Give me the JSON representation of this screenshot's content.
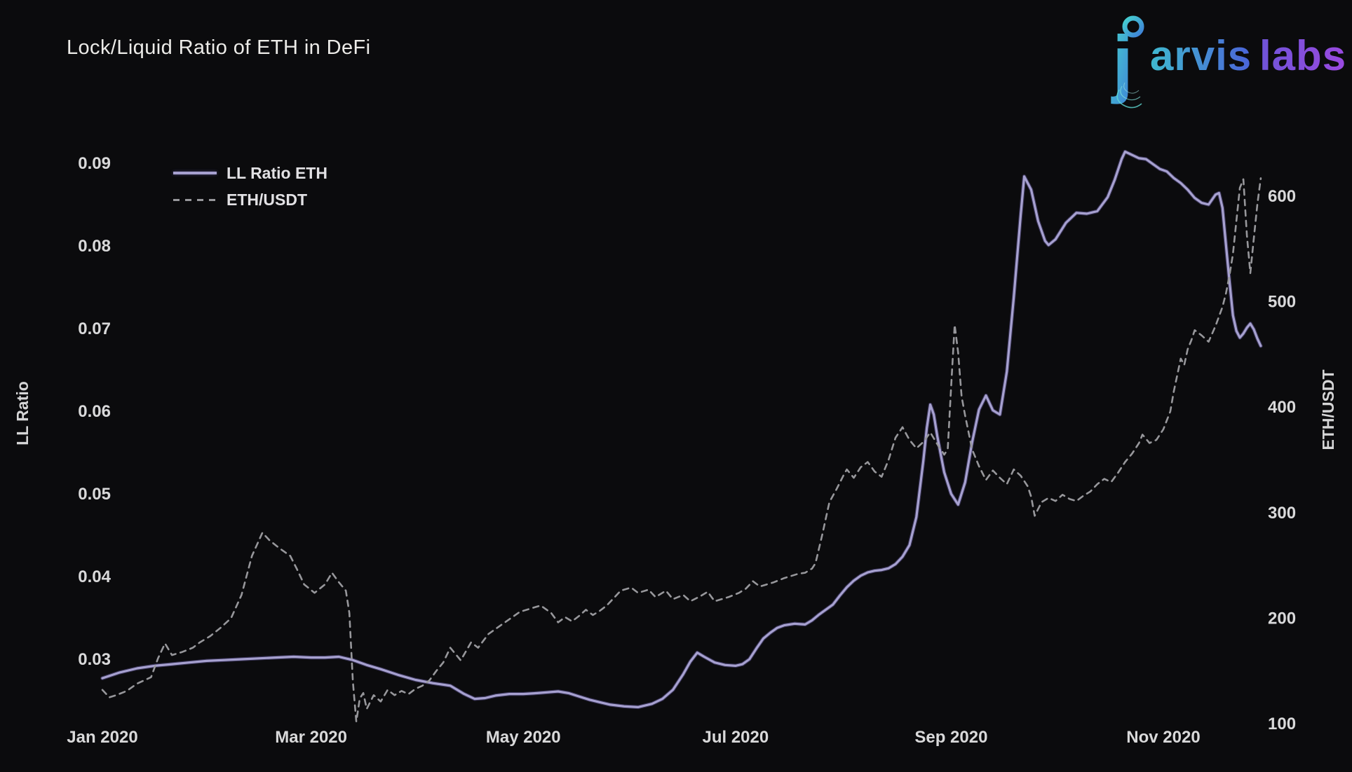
{
  "page": {
    "title": "Lock/Liquid Ratio of ETH in DeFi"
  },
  "brand": {
    "name": "jarvis labs",
    "initial": "j",
    "rest1": "arvis",
    "rest2": "labs",
    "teal": "#3fc3c9",
    "blue": "#4b63d8",
    "purple": "#9a49e0"
  },
  "chart_data": {
    "type": "line",
    "title": "Lock/Liquid Ratio of ETH in DeFi",
    "grid": false,
    "legend_position": "upper-left",
    "x_axis": {
      "tick_labels": [
        "Jan 2020",
        "Mar 2020",
        "May 2020",
        "Jul 2020",
        "Sep 2020",
        "Nov 2020"
      ],
      "tick_days": [
        0,
        60,
        121,
        182,
        244,
        305
      ],
      "range_days": [
        0,
        334
      ]
    },
    "left_axis": {
      "label": "LL Ratio",
      "tick_values": [
        0.03,
        0.04,
        0.05,
        0.06,
        0.07,
        0.08,
        0.09
      ],
      "tick_labels": [
        "0.03",
        "0.04",
        "0.05",
        "0.06",
        "0.07",
        "0.08",
        "0.09"
      ],
      "range": [
        0.022,
        0.094
      ]
    },
    "right_axis": {
      "label": "ETH/USDT",
      "tick_values": [
        100,
        200,
        300,
        400,
        500,
        600
      ],
      "tick_labels": [
        "100",
        "200",
        "300",
        "400",
        "500",
        "600"
      ],
      "range": [
        85,
        640
      ]
    },
    "series": [
      {
        "name": "LL Ratio ETH",
        "axis": "left",
        "style": "solid",
        "color": "#a7a1d0",
        "points": [
          [
            0,
            0.0277
          ],
          [
            5,
            0.0284
          ],
          [
            10,
            0.0289
          ],
          [
            15,
            0.0292
          ],
          [
            20,
            0.0294
          ],
          [
            25,
            0.0296
          ],
          [
            30,
            0.0298
          ],
          [
            35,
            0.0299
          ],
          [
            40,
            0.03
          ],
          [
            45,
            0.0301
          ],
          [
            50,
            0.0302
          ],
          [
            55,
            0.0303
          ],
          [
            60,
            0.0302
          ],
          [
            64,
            0.0302
          ],
          [
            68,
            0.0303
          ],
          [
            72,
            0.0299
          ],
          [
            76,
            0.0293
          ],
          [
            80,
            0.0288
          ],
          [
            85,
            0.0281
          ],
          [
            90,
            0.0275
          ],
          [
            95,
            0.0271
          ],
          [
            100,
            0.0268
          ],
          [
            104,
            0.0258
          ],
          [
            107,
            0.0252
          ],
          [
            110,
            0.0253
          ],
          [
            113,
            0.0256
          ],
          [
            117,
            0.0258
          ],
          [
            121,
            0.0258
          ],
          [
            125,
            0.0259
          ],
          [
            128,
            0.026
          ],
          [
            131,
            0.0261
          ],
          [
            134,
            0.0259
          ],
          [
            137,
            0.0255
          ],
          [
            140,
            0.0251
          ],
          [
            143,
            0.0248
          ],
          [
            146,
            0.0245
          ],
          [
            150,
            0.0243
          ],
          [
            154,
            0.0242
          ],
          [
            158,
            0.0246
          ],
          [
            161,
            0.0252
          ],
          [
            164,
            0.0263
          ],
          [
            167,
            0.0282
          ],
          [
            169,
            0.0297
          ],
          [
            171,
            0.0308
          ],
          [
            173,
            0.0303
          ],
          [
            176,
            0.0296
          ],
          [
            179,
            0.0293
          ],
          [
            182,
            0.0292
          ],
          [
            184,
            0.0294
          ],
          [
            186,
            0.03
          ],
          [
            188,
            0.0313
          ],
          [
            190,
            0.0325
          ],
          [
            192,
            0.0332
          ],
          [
            194,
            0.0338
          ],
          [
            196,
            0.0341
          ],
          [
            199,
            0.0343
          ],
          [
            202,
            0.0342
          ],
          [
            204,
            0.0347
          ],
          [
            206,
            0.0354
          ],
          [
            208,
            0.036
          ],
          [
            210,
            0.0366
          ],
          [
            212,
            0.0377
          ],
          [
            214,
            0.0387
          ],
          [
            216,
            0.0395
          ],
          [
            218,
            0.0401
          ],
          [
            220,
            0.0405
          ],
          [
            222,
            0.0407
          ],
          [
            224,
            0.0408
          ],
          [
            226,
            0.041
          ],
          [
            228,
            0.0415
          ],
          [
            230,
            0.0424
          ],
          [
            232,
            0.0438
          ],
          [
            234,
            0.0472
          ],
          [
            236,
            0.054
          ],
          [
            237,
            0.058
          ],
          [
            238,
            0.0608
          ],
          [
            239,
            0.0596
          ],
          [
            240,
            0.057
          ],
          [
            241,
            0.0548
          ],
          [
            242,
            0.0526
          ],
          [
            244,
            0.05
          ],
          [
            246,
            0.0487
          ],
          [
            248,
            0.0514
          ],
          [
            250,
            0.0562
          ],
          [
            252,
            0.0602
          ],
          [
            254,
            0.0619
          ],
          [
            256,
            0.0601
          ],
          [
            258,
            0.0596
          ],
          [
            260,
            0.0648
          ],
          [
            262,
            0.0738
          ],
          [
            264,
            0.0838
          ],
          [
            265,
            0.0884
          ],
          [
            267,
            0.0868
          ],
          [
            269,
            0.083
          ],
          [
            271,
            0.0806
          ],
          [
            272,
            0.0801
          ],
          [
            274,
            0.0808
          ],
          [
            277,
            0.0828
          ],
          [
            280,
            0.084
          ],
          [
            283,
            0.0839
          ],
          [
            286,
            0.0842
          ],
          [
            289,
            0.0859
          ],
          [
            291,
            0.088
          ],
          [
            293,
            0.0905
          ],
          [
            294,
            0.0914
          ],
          [
            296,
            0.091
          ],
          [
            298,
            0.0906
          ],
          [
            300,
            0.0905
          ],
          [
            302,
            0.0899
          ],
          [
            304,
            0.0893
          ],
          [
            306,
            0.089
          ],
          [
            308,
            0.0882
          ],
          [
            310,
            0.0876
          ],
          [
            312,
            0.0868
          ],
          [
            314,
            0.0858
          ],
          [
            316,
            0.0852
          ],
          [
            318,
            0.085
          ],
          [
            320,
            0.0862
          ],
          [
            321,
            0.0864
          ],
          [
            322,
            0.0846
          ],
          [
            323,
            0.0801
          ],
          [
            324,
            0.0757
          ],
          [
            325,
            0.0716
          ],
          [
            326,
            0.0697
          ],
          [
            327,
            0.0689
          ],
          [
            328,
            0.0694
          ],
          [
            329,
            0.0701
          ],
          [
            330,
            0.0706
          ],
          [
            331,
            0.0699
          ],
          [
            332,
            0.0688
          ],
          [
            333,
            0.0679
          ]
        ]
      },
      {
        "name": "ETH/USDT",
        "axis": "right",
        "style": "dashed",
        "color": "#97979b",
        "points": [
          [
            0,
            132
          ],
          [
            2,
            125
          ],
          [
            4,
            127
          ],
          [
            7,
            131
          ],
          [
            10,
            138
          ],
          [
            14,
            144
          ],
          [
            16,
            162
          ],
          [
            18,
            176
          ],
          [
            20,
            165
          ],
          [
            23,
            168
          ],
          [
            26,
            172
          ],
          [
            28,
            177
          ],
          [
            31,
            183
          ],
          [
            34,
            191
          ],
          [
            37,
            200
          ],
          [
            40,
            222
          ],
          [
            43,
            259
          ],
          [
            46,
            281
          ],
          [
            48,
            274
          ],
          [
            51,
            266
          ],
          [
            54,
            259
          ],
          [
            56,
            246
          ],
          [
            58,
            232
          ],
          [
            61,
            224
          ],
          [
            64,
            232
          ],
          [
            66,
            243
          ],
          [
            68,
            234
          ],
          [
            70,
            226
          ],
          [
            71,
            205
          ],
          [
            72,
            140
          ],
          [
            73,
            102
          ],
          [
            74,
            124
          ],
          [
            75,
            129
          ],
          [
            76,
            114
          ],
          [
            78,
            127
          ],
          [
            80,
            121
          ],
          [
            82,
            132
          ],
          [
            84,
            127
          ],
          [
            86,
            131
          ],
          [
            88,
            128
          ],
          [
            90,
            133
          ],
          [
            92,
            136
          ],
          [
            94,
            141
          ],
          [
            96,
            150
          ],
          [
            98,
            158
          ],
          [
            100,
            172
          ],
          [
            103,
            160
          ],
          [
            106,
            177
          ],
          [
            108,
            172
          ],
          [
            111,
            185
          ],
          [
            114,
            192
          ],
          [
            117,
            199
          ],
          [
            120,
            206
          ],
          [
            123,
            209
          ],
          [
            126,
            212
          ],
          [
            129,
            205
          ],
          [
            131,
            196
          ],
          [
            133,
            201
          ],
          [
            135,
            197
          ],
          [
            137,
            202
          ],
          [
            139,
            208
          ],
          [
            141,
            203
          ],
          [
            143,
            207
          ],
          [
            145,
            212
          ],
          [
            147,
            219
          ],
          [
            149,
            226
          ],
          [
            152,
            229
          ],
          [
            154,
            224
          ],
          [
            157,
            227
          ],
          [
            159,
            220
          ],
          [
            162,
            226
          ],
          [
            164,
            218
          ],
          [
            167,
            222
          ],
          [
            169,
            216
          ],
          [
            172,
            221
          ],
          [
            174,
            225
          ],
          [
            176,
            216
          ],
          [
            178,
            218
          ],
          [
            180,
            220
          ],
          [
            183,
            224
          ],
          [
            185,
            228
          ],
          [
            187,
            235
          ],
          [
            189,
            230
          ],
          [
            191,
            232
          ],
          [
            193,
            234
          ],
          [
            196,
            238
          ],
          [
            198,
            240
          ],
          [
            200,
            242
          ],
          [
            202,
            243
          ],
          [
            204,
            247
          ],
          [
            205,
            252
          ],
          [
            206,
            266
          ],
          [
            207,
            280
          ],
          [
            208,
            295
          ],
          [
            209,
            310
          ],
          [
            211,
            322
          ],
          [
            213,
            335
          ],
          [
            214,
            341
          ],
          [
            216,
            333
          ],
          [
            218,
            343
          ],
          [
            220,
            348
          ],
          [
            222,
            339
          ],
          [
            224,
            334
          ],
          [
            226,
            350
          ],
          [
            228,
            371
          ],
          [
            230,
            381
          ],
          [
            232,
            369
          ],
          [
            234,
            361
          ],
          [
            236,
            367
          ],
          [
            238,
            376
          ],
          [
            240,
            365
          ],
          [
            242,
            355
          ],
          [
            243,
            360
          ],
          [
            244,
            420
          ],
          [
            245,
            478
          ],
          [
            246,
            452
          ],
          [
            247,
            410
          ],
          [
            248,
            392
          ],
          [
            250,
            360
          ],
          [
            252,
            344
          ],
          [
            254,
            331
          ],
          [
            256,
            340
          ],
          [
            258,
            333
          ],
          [
            260,
            327
          ],
          [
            262,
            341
          ],
          [
            264,
            335
          ],
          [
            266,
            325
          ],
          [
            267,
            315
          ],
          [
            268,
            297
          ],
          [
            270,
            310
          ],
          [
            272,
            314
          ],
          [
            274,
            311
          ],
          [
            276,
            317
          ],
          [
            278,
            313
          ],
          [
            280,
            311
          ],
          [
            282,
            316
          ],
          [
            284,
            320
          ],
          [
            286,
            327
          ],
          [
            288,
            332
          ],
          [
            290,
            329
          ],
          [
            292,
            338
          ],
          [
            294,
            348
          ],
          [
            296,
            356
          ],
          [
            298,
            366
          ],
          [
            299,
            374
          ],
          [
            301,
            366
          ],
          [
            303,
            369
          ],
          [
            305,
            379
          ],
          [
            307,
            396
          ],
          [
            308,
            415
          ],
          [
            310,
            446
          ],
          [
            311,
            440
          ],
          [
            312,
            455
          ],
          [
            313,
            463
          ],
          [
            314,
            473
          ],
          [
            316,
            468
          ],
          [
            318,
            462
          ],
          [
            320,
            477
          ],
          [
            322,
            495
          ],
          [
            323,
            508
          ],
          [
            324,
            525
          ],
          [
            325,
            545
          ],
          [
            326,
            577
          ],
          [
            327,
            608
          ],
          [
            328,
            616
          ],
          [
            329,
            563
          ],
          [
            330,
            527
          ],
          [
            331,
            560
          ],
          [
            332,
            592
          ],
          [
            333,
            617
          ]
        ]
      }
    ]
  }
}
